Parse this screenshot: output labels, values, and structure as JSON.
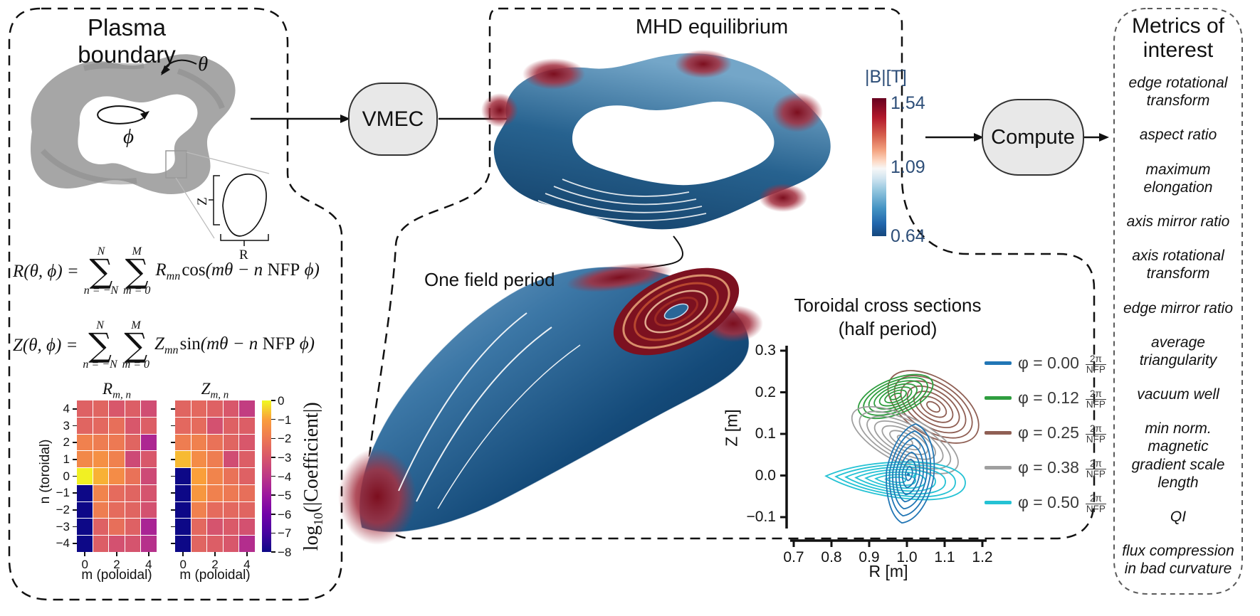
{
  "panels": {
    "plasma": {
      "title": "Plasma boundary"
    },
    "mhd": {
      "title": "MHD equilibrium"
    },
    "metrics": {
      "title_line1": "Metrics of",
      "title_line2": "interest",
      "items": [
        "edge rotational transform",
        "aspect ratio",
        "maximum elongation",
        "axis mirror ratio",
        "axis rotational transform",
        "edge mirror ratio",
        "average triangularity",
        "vacuum well",
        "min norm. magnetic gradient scale length",
        "QI",
        "flux compression in bad curvature"
      ]
    }
  },
  "nodes": {
    "vmec": "VMEC",
    "compute": "Compute"
  },
  "boundary_labels": {
    "theta": "θ",
    "phi": "ϕ",
    "z": "Z",
    "r": "R"
  },
  "equations": {
    "r": {
      "lhs": "R(θ, ϕ) =",
      "sum1_top": "N",
      "sum1_bot": "n = −N",
      "sum2_top": "M",
      "sum2_bot": "m = 0",
      "coeff": "R",
      "coeff_sub": "mn",
      "func": "cos",
      "arg_pre": "(mθ − n ",
      "nfp": "NFP",
      "arg_post": " ϕ)"
    },
    "z": {
      "lhs": "Z(θ, ϕ) =",
      "sum1_top": "N",
      "sum1_bot": "n = −N",
      "sum2_top": "M",
      "sum2_bot": "m = 0",
      "coeff": "Z",
      "coeff_sub": "mn",
      "func": "sin",
      "arg_pre": "(mθ − n ",
      "nfp": "NFP",
      "arg_post": " ϕ)"
    }
  },
  "heatmaps": {
    "r_title_main": "R",
    "z_title_main": "Z",
    "title_sub": "m, n",
    "xlabel": "m (poloidal)",
    "ylabel": "n (toroidal)",
    "xticks": [
      "0",
      "2",
      "4"
    ],
    "yticks": [
      "4",
      "3",
      "2",
      "1",
      "0",
      "−1",
      "−2",
      "−3",
      "−4"
    ],
    "colorbar_ticks": [
      "0",
      "−1",
      "−2",
      "−3",
      "−4",
      "−5",
      "−6",
      "−7",
      "−8"
    ],
    "colorbar_label_pre": "log",
    "colorbar_label_sub": "10",
    "colorbar_label_post": "(|Coefficient|)"
  },
  "bfield": {
    "label": "|B|[T]",
    "tick_top": "1.54",
    "tick_mid": "1.09",
    "tick_bot": "0.64",
    "label_color": "#2d4e78"
  },
  "annotations": {
    "one_field_period": "One field period"
  },
  "cross_sections": {
    "title_line1": "Toroidal cross sections",
    "title_line2": "(half period)",
    "xlabel": "R [m]",
    "ylabel": "Z [m]",
    "xticks": [
      "0.7",
      "0.8",
      "0.9",
      "1.0",
      "1.1",
      "1.2"
    ],
    "yticks": [
      "0.3",
      "0.2",
      "0.1",
      "0.0",
      "−0.1"
    ],
    "legend": [
      {
        "color": "#2176b5",
        "label": "φ = 0.00",
        "frac_num": "2π",
        "frac_den": "NFP"
      },
      {
        "color": "#2f9e3f",
        "label": "φ = 0.12",
        "frac_num": "2π",
        "frac_den": "NFP"
      },
      {
        "color": "#8f5f54",
        "label": "φ = 0.25",
        "frac_num": "2π",
        "frac_den": "NFP"
      },
      {
        "color": "#9f9f9f",
        "label": "φ = 0.38",
        "frac_num": "2π",
        "frac_den": "NFP"
      },
      {
        "color": "#25c2d4",
        "label": "φ = 0.50",
        "frac_num": "2π",
        "frac_den": "NFP"
      }
    ]
  },
  "chart_data": [
    {
      "type": "heatmap",
      "name": "R_mn_coefficients",
      "title": "R_{m,n}",
      "xlabel": "m (poloidal)",
      "ylabel": "n (toroidal)",
      "x": [
        0,
        1,
        2,
        3,
        4
      ],
      "y": [
        4,
        3,
        2,
        1,
        0,
        -1,
        -2,
        -3,
        -4
      ],
      "colormap": "plasma",
      "scale": "log10(|Coefficient|)",
      "clim": [
        -8,
        0
      ],
      "values": [
        [
          -2.7,
          -2.6,
          -3.0,
          -2.8,
          -3.3
        ],
        [
          -2.6,
          -2.5,
          -2.3,
          -3.0,
          -2.8
        ],
        [
          -1.8,
          -1.9,
          -2.0,
          -2.6,
          -4.5
        ],
        [
          -1.6,
          -1.4,
          -1.8,
          -3.4,
          -3.0
        ],
        [
          -0.1,
          -0.8,
          -1.5,
          -2.2,
          -3.4
        ],
        [
          -8.0,
          -1.7,
          -2.4,
          -2.6,
          -3.1
        ],
        [
          -8.0,
          -1.9,
          -2.4,
          -2.6,
          -3.2
        ],
        [
          -8.0,
          -2.7,
          -2.3,
          -2.7,
          -4.6
        ],
        [
          -8.0,
          -2.8,
          -3.2,
          -3.1,
          -4.2
        ]
      ]
    },
    {
      "type": "heatmap",
      "name": "Z_mn_coefficients",
      "title": "Z_{m,n}",
      "xlabel": "m (poloidal)",
      "ylabel": "n (toroidal)",
      "x": [
        0,
        1,
        2,
        3,
        4
      ],
      "y": [
        4,
        3,
        2,
        1,
        0,
        -1,
        -2,
        -3,
        -4
      ],
      "colormap": "plasma",
      "scale": "log10(|Coefficient|)",
      "clim": [
        -8,
        0
      ],
      "values": [
        [
          -2.6,
          -2.5,
          -2.7,
          -3.0,
          -3.8
        ],
        [
          -2.5,
          -2.4,
          -3.2,
          -2.7,
          -2.8
        ],
        [
          -1.9,
          -1.8,
          -2.2,
          -2.6,
          -3.0
        ],
        [
          -0.7,
          -1.5,
          -1.9,
          -3.3,
          -2.8
        ],
        [
          -8.0,
          -1.0,
          -1.7,
          -2.2,
          -2.7
        ],
        [
          -8.0,
          -1.2,
          -1.8,
          -2.0,
          -2.3
        ],
        [
          -8.0,
          -1.8,
          -2.4,
          -2.5,
          -2.6
        ],
        [
          -8.0,
          -2.5,
          -3.1,
          -2.9,
          -3.2
        ],
        [
          -8.0,
          -2.6,
          -2.8,
          -3.0,
          -4.3
        ]
      ]
    },
    {
      "type": "line",
      "name": "toroidal_cross_sections",
      "title": "Toroidal cross sections (half period)",
      "xlabel": "R [m]",
      "ylabel": "Z [m]",
      "xlim": [
        0.7,
        1.2
      ],
      "ylim": [
        -0.1,
        0.3
      ],
      "series": [
        {
          "name": "φ = 0.25 2π/NFP",
          "color": "#8f5f54",
          "shape": "ellipse",
          "center_R": 1.07,
          "center_Z": 0.165,
          "half_width_R": 0.135,
          "half_height_Z": 0.067,
          "tilt_deg": 33,
          "n_surfaces": 7
        },
        {
          "name": "φ = 0.12 2π/NFP",
          "color": "#2f9e3f",
          "shape": "ellipse",
          "center_R": 0.97,
          "center_Z": 0.19,
          "half_width_R": 0.105,
          "half_height_Z": 0.042,
          "tilt_deg": -22,
          "n_surfaces": 7
        },
        {
          "name": "φ = 0.38 2π/NFP",
          "color": "#9f9f9f",
          "shape": "ellipse",
          "center_R": 0.995,
          "center_Z": 0.085,
          "half_width_R": 0.155,
          "half_height_Z": 0.055,
          "tilt_deg": 27,
          "n_surfaces": 7
        },
        {
          "name": "φ = 0.50 2π/NFP",
          "color": "#25c2d4",
          "shape": "teardrop",
          "center_R": 0.97,
          "center_Z": -0.01,
          "half_width_R": 0.185,
          "half_height_Z": 0.083,
          "tilt_deg": 3,
          "n_surfaces": 7
        },
        {
          "name": "φ = 0.00 2π/NFP",
          "color": "#2176b5",
          "shape": "bean",
          "center_R": 1.005,
          "center_Z": 0.005,
          "half_width_R": 0.07,
          "half_height_Z": 0.12,
          "tilt_deg": 8,
          "n_surfaces": 7
        }
      ]
    },
    {
      "type": "colorbar",
      "name": "B_magnitude",
      "label": "|B|[T]",
      "cmap": "RdBu_r",
      "vmin": 0.64,
      "vmax": 1.54,
      "ticks": [
        1.54,
        1.09,
        0.64
      ]
    }
  ]
}
